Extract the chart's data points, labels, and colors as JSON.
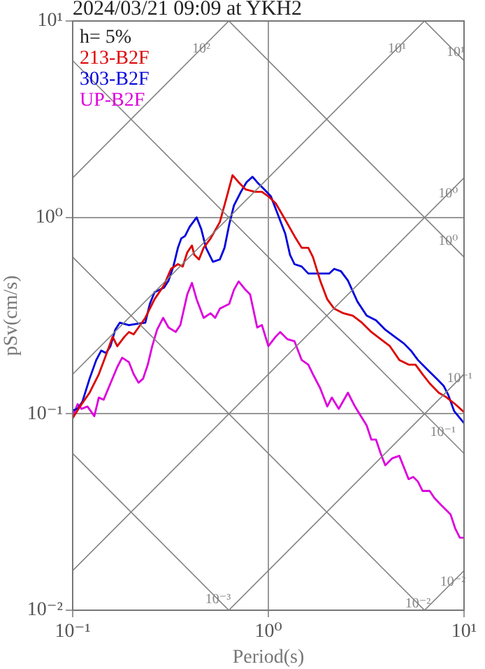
{
  "chart_data": {
    "type": "line",
    "title": "2024/03/21 09:09 at YKH2",
    "xlabel": "Period(s)",
    "ylabel": "pSv(cm/s)",
    "log": "xy",
    "grid": true,
    "legend": "top left",
    "xlim": [
      0.1,
      10
    ],
    "ylim": [
      0.01,
      10
    ],
    "xticks": [
      {
        "value": 0.1,
        "label": "10⁻¹"
      },
      {
        "value": 1,
        "label": "10⁰"
      },
      {
        "value": 10,
        "label": "10¹"
      }
    ],
    "yticks": [
      {
        "value": 0.01,
        "label": "10⁻²"
      },
      {
        "value": 0.1,
        "label": "10⁻¹"
      },
      {
        "value": 1,
        "label": "10⁰"
      },
      {
        "value": 10,
        "label": "10¹"
      }
    ],
    "annotations": [
      "h= 5%",
      {
        "text": "10²",
        "x": 0.454,
        "y": 7.22
      },
      {
        "text": "10¹",
        "x": 4.54,
        "y": 7.22
      },
      {
        "text": "10¹",
        "x": 9.06,
        "y": 6.93
      },
      {
        "text": "10⁰",
        "x": 8.3,
        "y": 1.32
      },
      {
        "text": "10⁰",
        "x": 8.3,
        "y": 0.757
      },
      {
        "text": "10⁻¹",
        "x": 9.5,
        "y": 0.151
      },
      {
        "text": "10⁻¹",
        "x": 7.8,
        "y": 0.0805
      },
      {
        "text": "10⁻³",
        "x": 0.553,
        "y": 0.01136
      },
      {
        "text": "10⁻²",
        "x": 5.81,
        "y": 0.01081
      },
      {
        "text": "10⁻²",
        "x": 8.77,
        "y": 0.01394
      }
    ],
    "series": [
      {
        "type": "line",
        "color": "#808080",
        "x": [
          0.1,
          0.628
        ],
        "values": [
          1.59,
          10
        ]
      },
      {
        "type": "line",
        "color": "#808080",
        "x": [
          0.1,
          6.28
        ],
        "values": [
          0.159,
          10
        ]
      },
      {
        "type": "line",
        "color": "#808080",
        "x": [
          0.1,
          10
        ],
        "values": [
          0.0159,
          1.59
        ]
      },
      {
        "type": "line",
        "color": "#808080",
        "x": [
          0.628,
          10
        ],
        "values": [
          0.01,
          0.159
        ]
      },
      {
        "type": "line",
        "color": "#808080",
        "x": [
          6.28,
          10
        ],
        "values": [
          0.01,
          0.0159
        ]
      },
      {
        "type": "line",
        "color": "#808080",
        "x": [
          6.28,
          10
        ],
        "values": [
          10,
          6.28
        ]
      },
      {
        "type": "line",
        "color": "#808080",
        "x": [
          0.628,
          10
        ],
        "values": [
          10,
          0.628
        ]
      },
      {
        "type": "line",
        "color": "#808080",
        "x": [
          0.1,
          10
        ],
        "values": [
          6.28,
          0.0628
        ]
      },
      {
        "type": "line",
        "color": "#808080",
        "x": [
          0.1,
          6.28
        ],
        "values": [
          0.628,
          0.01
        ]
      },
      {
        "type": "line",
        "color": "#808080",
        "x": [
          0.1,
          0.628
        ],
        "values": [
          0.0628,
          0.01
        ]
      },
      {
        "name": "213-B2F",
        "color": "#dd0000",
        "x": [
          0.1,
          0.109,
          0.122,
          0.136,
          0.148,
          0.16,
          0.169,
          0.184,
          0.194,
          0.205,
          0.217,
          0.235,
          0.262,
          0.293,
          0.318,
          0.345,
          0.365,
          0.385,
          0.407,
          0.418,
          0.442,
          0.467,
          0.507,
          0.565,
          0.614,
          0.656,
          0.705,
          0.764,
          0.853,
          0.927,
          1.0,
          1.09,
          1.22,
          1.36,
          1.48,
          1.6,
          1.69,
          1.84,
          2.0,
          2.17,
          2.42,
          2.7,
          3.01,
          3.36,
          3.75,
          4.18,
          4.67,
          5.21,
          5.65,
          6.14,
          6.67,
          7.43,
          8.07,
          9.01,
          10
        ],
        "values": [
          0.095,
          0.109,
          0.128,
          0.159,
          0.199,
          0.247,
          0.221,
          0.247,
          0.261,
          0.254,
          0.275,
          0.308,
          0.383,
          0.452,
          0.547,
          0.578,
          0.562,
          0.663,
          0.719,
          0.645,
          0.611,
          0.7,
          0.782,
          0.946,
          1.28,
          1.64,
          1.51,
          1.39,
          1.35,
          1.35,
          1.28,
          1.18,
          0.973,
          0.803,
          0.7,
          0.7,
          0.628,
          0.477,
          0.383,
          0.343,
          0.325,
          0.316,
          0.291,
          0.261,
          0.24,
          0.221,
          0.188,
          0.178,
          0.178,
          0.159,
          0.143,
          0.128,
          0.122,
          0.112,
          0.102
        ]
      },
      {
        "name": "303-B2F",
        "color": "#0000dd",
        "x": [
          0.1,
          0.106,
          0.112,
          0.122,
          0.132,
          0.14,
          0.148,
          0.156,
          0.165,
          0.174,
          0.194,
          0.217,
          0.235,
          0.248,
          0.262,
          0.293,
          0.309,
          0.327,
          0.345,
          0.359,
          0.375,
          0.396,
          0.43,
          0.454,
          0.48,
          0.521,
          0.565,
          0.597,
          0.631,
          0.667,
          0.724,
          0.773,
          0.83,
          0.877,
          0.952,
          1.03,
          1.12,
          1.22,
          1.29,
          1.36,
          1.48,
          1.6,
          1.84,
          2.05,
          2.17,
          2.35,
          2.55,
          2.85,
          3.18,
          3.55,
          3.96,
          4.42,
          4.93,
          5.35,
          5.81,
          6.49,
          7.24,
          7.86,
          8.3,
          8.91,
          10
        ],
        "values": [
          0.104,
          0.106,
          0.115,
          0.151,
          0.188,
          0.21,
          0.204,
          0.221,
          0.268,
          0.291,
          0.283,
          0.288,
          0.291,
          0.363,
          0.416,
          0.439,
          0.477,
          0.562,
          0.7,
          0.782,
          0.803,
          0.896,
          1.0,
          0.872,
          0.7,
          0.594,
          0.611,
          0.7,
          0.921,
          1.15,
          1.35,
          1.51,
          1.61,
          1.51,
          1.39,
          1.28,
          1.03,
          0.826,
          0.645,
          0.578,
          0.562,
          0.518,
          0.518,
          0.518,
          0.547,
          0.532,
          0.477,
          0.373,
          0.316,
          0.299,
          0.268,
          0.247,
          0.228,
          0.21,
          0.188,
          0.168,
          0.151,
          0.139,
          0.125,
          0.103,
          0.0896
        ]
      },
      {
        "name": "UP-B2F",
        "color": "#dd00dd",
        "x": [
          0.1,
          0.106,
          0.111,
          0.119,
          0.129,
          0.136,
          0.144,
          0.156,
          0.169,
          0.179,
          0.194,
          0.205,
          0.217,
          0.229,
          0.242,
          0.255,
          0.27,
          0.29,
          0.309,
          0.336,
          0.355,
          0.385,
          0.407,
          0.43,
          0.467,
          0.507,
          0.535,
          0.565,
          0.631,
          0.667,
          0.705,
          0.764,
          0.807,
          0.877,
          0.927,
          1.0,
          1.09,
          1.15,
          1.25,
          1.36,
          1.48,
          1.6,
          1.69,
          1.84,
          2.0,
          2.11,
          2.29,
          2.55,
          2.77,
          3.18,
          3.36,
          3.55,
          3.75,
          3.96,
          4.3,
          4.67,
          5.21,
          5.5,
          5.81,
          6.14,
          6.67,
          7.05,
          7.64,
          8.53,
          9.01,
          9.52,
          10
        ],
        "values": [
          0.0973,
          0.112,
          0.106,
          0.109,
          0.0973,
          0.121,
          0.118,
          0.143,
          0.173,
          0.193,
          0.183,
          0.159,
          0.144,
          0.151,
          0.178,
          0.221,
          0.268,
          0.308,
          0.275,
          0.261,
          0.283,
          0.405,
          0.464,
          0.383,
          0.308,
          0.325,
          0.308,
          0.343,
          0.363,
          0.428,
          0.472,
          0.428,
          0.405,
          0.275,
          0.283,
          0.221,
          0.247,
          0.261,
          0.24,
          0.234,
          0.188,
          0.178,
          0.159,
          0.135,
          0.109,
          0.121,
          0.106,
          0.128,
          0.109,
          0.0872,
          0.0739,
          0.0739,
          0.0628,
          0.0547,
          0.0594,
          0.0611,
          0.0465,
          0.0477,
          0.0452,
          0.0405,
          0.0405,
          0.0373,
          0.0343,
          0.0308,
          0.0261,
          0.0234,
          0.0234
        ]
      }
    ]
  }
}
